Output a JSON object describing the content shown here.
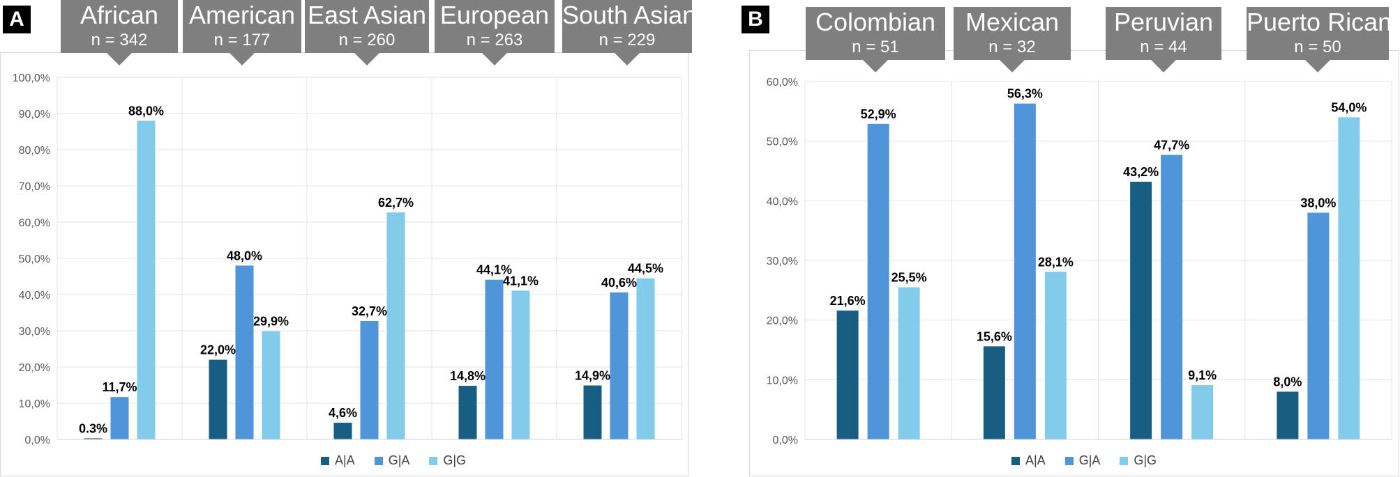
{
  "colors": {
    "A|A": "#185e82",
    "G|A": "#4e96d9",
    "G|G": "#83cbeb"
  },
  "panels": [
    {
      "label": "A"
    },
    {
      "label": "B"
    }
  ],
  "chart_data": [
    {
      "type": "bar",
      "panel": "A",
      "categories": [
        "African",
        "American",
        "East Asian",
        "European",
        "South Asian"
      ],
      "category_n": [
        "n = 342",
        "n = 177",
        "n = 260",
        "n = 263",
        "n = 229"
      ],
      "series": [
        {
          "name": "A|A",
          "values": [
            0.3,
            22.0,
            4.6,
            14.8,
            14.9
          ],
          "labels": [
            "0.3%",
            "22,0%",
            "4,6%",
            "14,8%",
            "14,9%"
          ]
        },
        {
          "name": "G|A",
          "values": [
            11.7,
            48.0,
            32.7,
            44.1,
            40.6
          ],
          "labels": [
            "11,7%",
            "48,0%",
            "32,7%",
            "44,1%",
            "40,6%"
          ]
        },
        {
          "name": "G|G",
          "values": [
            88.0,
            29.9,
            62.7,
            41.1,
            44.5
          ],
          "labels": [
            "88,0%",
            "29,9%",
            "62,7%",
            "41,1%",
            "44,5%"
          ]
        }
      ],
      "ylim": [
        0,
        100
      ],
      "yticks": [
        0,
        10,
        20,
        30,
        40,
        50,
        60,
        70,
        80,
        90,
        100
      ],
      "ytick_labels": [
        "0,0%",
        "10,0%",
        "20,0%",
        "30,0%",
        "40,0%",
        "50,0%",
        "60,0%",
        "70,0%",
        "80,0%",
        "90,0%",
        "100,0%"
      ],
      "legend": [
        "A|A",
        "G|A",
        "G|G"
      ],
      "legend_position": "bottom-center",
      "grid": true
    },
    {
      "type": "bar",
      "panel": "B",
      "categories": [
        "Colombian",
        "Mexican",
        "Peruvian",
        "Puerto Rican"
      ],
      "category_n": [
        "n = 51",
        "n = 32",
        "n = 44",
        "n = 50"
      ],
      "series": [
        {
          "name": "A|A",
          "values": [
            21.6,
            15.6,
            43.2,
            8.0
          ],
          "labels": [
            "21,6%",
            "15,6%",
            "43,2%",
            "8,0%"
          ]
        },
        {
          "name": "G|A",
          "values": [
            52.9,
            56.3,
            47.7,
            38.0
          ],
          "labels": [
            "52,9%",
            "56,3%",
            "47,7%",
            "38,0%"
          ]
        },
        {
          "name": "G|G",
          "values": [
            25.5,
            28.1,
            9.1,
            54.0
          ],
          "labels": [
            "25,5%",
            "28,1%",
            "9,1%",
            "54,0%"
          ]
        }
      ],
      "ylim": [
        0,
        60
      ],
      "yticks": [
        0,
        10,
        20,
        30,
        40,
        50,
        60
      ],
      "ytick_labels": [
        "0,0%",
        "10,0%",
        "20,0%",
        "30,0%",
        "40,0%",
        "50,0%",
        "60,0%"
      ],
      "legend": [
        "A|A",
        "G|A",
        "G|G"
      ],
      "legend_position": "bottom-center",
      "grid": true
    }
  ]
}
